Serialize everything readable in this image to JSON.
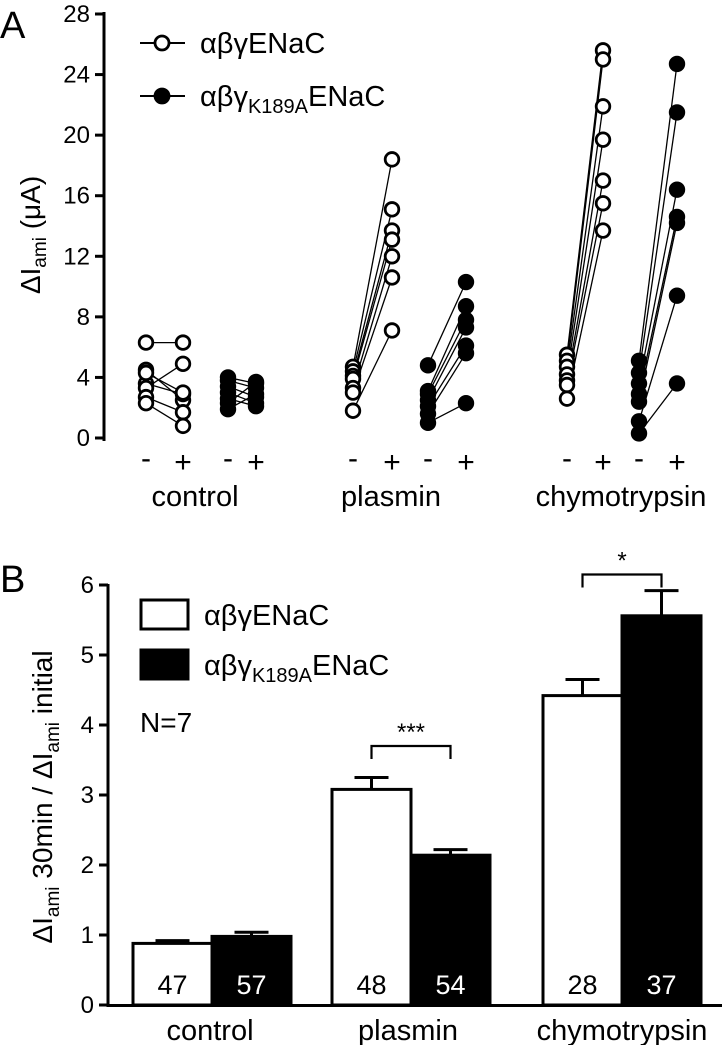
{
  "panel_labels": {
    "a": "A",
    "b": "B"
  },
  "chart_data": [
    {
      "type": "scatter",
      "panel": "A",
      "ylabel_main": "ΔI",
      "ylabel_sub": "ami",
      "ylabel_unit": " (μA)",
      "ylim": [
        0,
        28
      ],
      "yticks": [
        "0",
        "4",
        "8",
        "12",
        "16",
        "20",
        "24",
        "28"
      ],
      "pair_labels": {
        "pre": "-",
        "post": "+"
      },
      "groups": [
        "control",
        "plasmin",
        "chymotrypsin"
      ],
      "legend": [
        {
          "main": "αβγENaC",
          "sub": "",
          "tail": "",
          "marker": "open-circle"
        },
        {
          "main": "αβγ",
          "sub": "K189A",
          "tail": "ENaC",
          "marker": "filled-circle"
        }
      ],
      "series": [
        {
          "group": "control",
          "variant": "αβγENaC",
          "marker": "open",
          "pairs": [
            [
              6.3,
              6.3
            ],
            [
              4.5,
              2.5
            ],
            [
              3.6,
              2.9
            ],
            [
              3.3,
              4.9
            ],
            [
              2.7,
              1.7
            ],
            [
              2.3,
              0.8
            ],
            [
              4.3,
              3.0
            ]
          ]
        },
        {
          "group": "control",
          "variant": "αβγK189AENaC",
          "marker": "filled",
          "pairs": [
            [
              4.0,
              3.6
            ],
            [
              3.8,
              3.3
            ],
            [
              3.4,
              2.7
            ],
            [
              3.0,
              2.3
            ],
            [
              2.6,
              2.1
            ],
            [
              2.3,
              3.7
            ],
            [
              1.9,
              2.9
            ]
          ]
        },
        {
          "group": "plasmin",
          "variant": "αβγENaC",
          "marker": "open",
          "pairs": [
            [
              4.7,
              18.4
            ],
            [
              4.4,
              15.1
            ],
            [
              4.1,
              13.7
            ],
            [
              3.9,
              13.1
            ],
            [
              3.3,
              12.0
            ],
            [
              3.0,
              10.6
            ],
            [
              1.8,
              7.1
            ]
          ]
        },
        {
          "group": "plasmin",
          "variant": "αβγK189AENaC",
          "marker": "filled",
          "pairs": [
            [
              4.8,
              10.3
            ],
            [
              3.1,
              8.7
            ],
            [
              2.9,
              7.8
            ],
            [
              2.5,
              7.3
            ],
            [
              2.1,
              6.1
            ],
            [
              1.6,
              5.6
            ],
            [
              1.0,
              2.3
            ]
          ]
        },
        {
          "group": "chymotrypsin",
          "variant": "αβγENaC",
          "marker": "open",
          "pairs": [
            [
              5.5,
              25.6
            ],
            [
              5.1,
              25.0
            ],
            [
              4.7,
              21.9
            ],
            [
              4.2,
              19.7
            ],
            [
              3.8,
              17.0
            ],
            [
              3.5,
              15.5
            ],
            [
              2.6,
              13.7
            ]
          ]
        },
        {
          "group": "chymotrypsin",
          "variant": "αβγK189AENaC",
          "marker": "filled",
          "pairs": [
            [
              5.1,
              24.7
            ],
            [
              4.3,
              21.5
            ],
            [
              3.6,
              16.4
            ],
            [
              2.9,
              14.6
            ],
            [
              2.4,
              14.2
            ],
            [
              1.1,
              9.4
            ],
            [
              0.3,
              3.6
            ]
          ]
        }
      ]
    },
    {
      "type": "bar",
      "panel": "B",
      "ylabel_parts": [
        {
          "t": "ΔI",
          "sub": false
        },
        {
          "t": "ami",
          "sub": true
        },
        {
          "t": " 30min / ΔI",
          "sub": false
        },
        {
          "t": "ami",
          "sub": true
        },
        {
          "t": " initial",
          "sub": false
        }
      ],
      "ylim": [
        0,
        6
      ],
      "yticks": [
        "0",
        "1",
        "2",
        "3",
        "4",
        "5",
        "6"
      ],
      "categories": [
        "control",
        "plasmin",
        "chymotrypsin"
      ],
      "series": [
        {
          "name": "αβγENaC",
          "fill": "#ffffff",
          "values": [
            0.88,
            3.08,
            4.42
          ],
          "errors": [
            0.04,
            0.17,
            0.23
          ],
          "n": [
            "47",
            "48",
            "28"
          ]
        },
        {
          "name": "αβγK189AENaC",
          "fill": "#000000",
          "values": [
            0.98,
            2.14,
            5.56
          ],
          "errors": [
            0.06,
            0.08,
            0.36
          ],
          "n": [
            "57",
            "54",
            "37"
          ]
        }
      ],
      "legend": [
        {
          "main": "αβγENaC",
          "sub": "",
          "tail": "",
          "fill": "#ffffff"
        },
        {
          "main": "αβγ",
          "sub": "K189A",
          "tail": "ENaC",
          "fill": "#000000"
        }
      ],
      "annotation": "N=7",
      "significance": [
        {
          "category": "plasmin",
          "label": "***",
          "y": 3.7
        },
        {
          "category": "chymotrypsin",
          "label": "*",
          "y": 6.15
        }
      ]
    }
  ]
}
